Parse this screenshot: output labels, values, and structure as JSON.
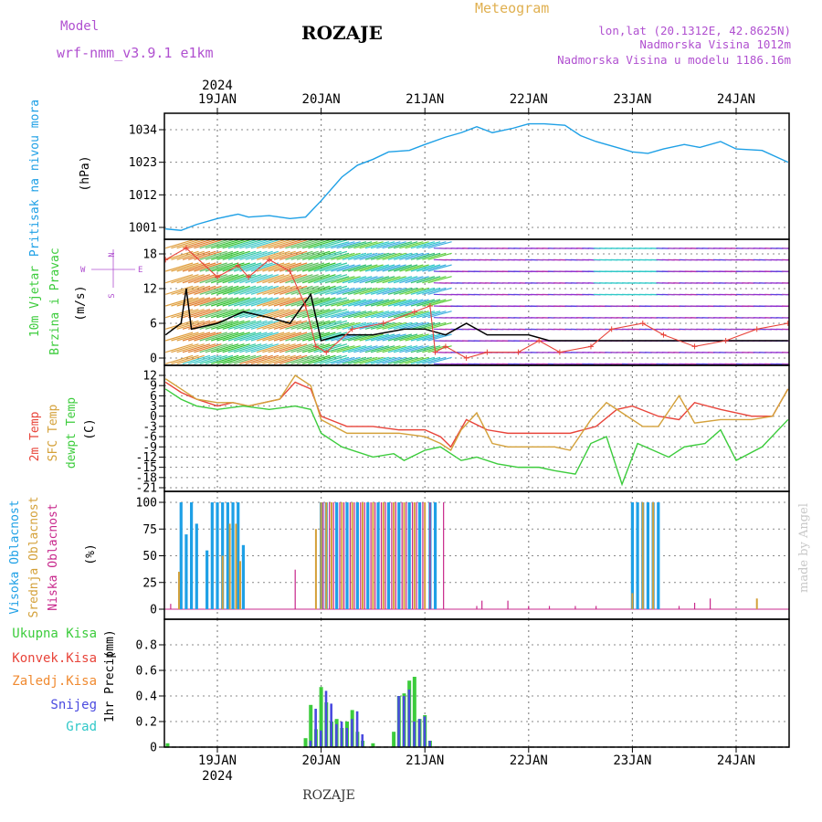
{
  "header": {
    "model_label": "Model",
    "model_name": "wrf-nmm_v3.9.1  e1km",
    "station": "ROZAJE",
    "product": "Meteogram",
    "lonlat": "lon,lat (20.1312E, 42.8625N)",
    "elevation": "Nadmorska Visina 1012m",
    "model_elevation": "Nadmorska Visina u modelu 1186.16m"
  },
  "colors": {
    "pressure": "#1ea0e6",
    "temp2m": "#e8443a",
    "sfc": "#d4a13a",
    "dewpt": "#3ccc3c",
    "high_cloud": "#1ea0e6",
    "mid_cloud": "#d4a13a",
    "low_cloud": "#c8288c",
    "total_precip": "#3ccc3c",
    "conv_precip": "#e8443a",
    "frozen_precip": "#f08a30",
    "snow": "#4a4ae0",
    "hail": "#30c8c8",
    "wind_speed": "#000000",
    "gust": "#e8443a",
    "wind_dir_label": "#b050d0"
  },
  "time_axis": {
    "year": "2024",
    "days": [
      "19JAN",
      "20JAN",
      "21JAN",
      "22JAN",
      "23JAN",
      "24JAN"
    ]
  },
  "footer": {
    "station": "ROZAJE",
    "credit": "made by Angel"
  },
  "chart_data": [
    {
      "type": "line",
      "title": "",
      "ylabel_lines": [
        "Pritisak na nivou mora",
        "(hPa)"
      ],
      "yticks": [
        1001,
        1012,
        1023,
        1034
      ],
      "ylim": [
        998,
        1038
      ],
      "x_unit": "days from 19JAN 00UTC",
      "series": [
        {
          "key": "pressure",
          "x": [
            -0.5,
            -0.35,
            -0.2,
            0,
            0.2,
            0.3,
            0.5,
            0.7,
            0.85,
            1.0,
            1.2,
            1.35,
            1.5,
            1.65,
            1.85,
            2.0,
            2.2,
            2.35,
            2.5,
            2.65,
            2.85,
            3.0,
            3.15,
            3.35,
            3.5,
            3.65,
            3.85,
            4.0,
            4.15,
            4.3,
            4.5,
            4.65,
            4.85,
            5.0,
            5.25,
            5.5
          ],
          "values": [
            1000.5,
            1000,
            1002,
            1004,
            1005.5,
            1004.5,
            1005,
            1004,
            1004.5,
            1010,
            1018,
            1022,
            1024,
            1026.5,
            1027,
            1029,
            1031.5,
            1033,
            1035,
            1033,
            1034.5,
            1036,
            1036,
            1035.5,
            1032,
            1030,
            1028,
            1026.5,
            1026,
            1027.5,
            1029,
            1028,
            1030,
            1027.5,
            1027,
            1023
          ]
        }
      ]
    },
    {
      "type": "line",
      "title": "",
      "ylabel_lines": [
        "10m Vjetar",
        "Brzina i Pravac",
        "(m/s)"
      ],
      "direction_key": [
        "N",
        "W",
        "E",
        "S"
      ],
      "yticks": [
        0,
        6,
        12,
        18
      ],
      "ylim": [
        -1,
        20
      ],
      "x_unit": "days from 19JAN 00UTC",
      "series": [
        {
          "key": "wind_speed",
          "x": [
            -0.5,
            -0.35,
            -0.3,
            -0.25,
            0,
            0.25,
            0.5,
            0.7,
            0.9,
            1.0,
            1.2,
            1.5,
            1.8,
            2.0,
            2.2,
            2.4,
            2.6,
            2.8,
            3.0,
            3.2,
            3.5,
            3.8,
            4.0,
            4.2,
            4.4,
            4.6,
            4.9,
            5.1,
            5.3,
            5.5
          ],
          "values": [
            4,
            6,
            12,
            5,
            6,
            8,
            7,
            6,
            11,
            3,
            4,
            4,
            5,
            5,
            4,
            6,
            4,
            4,
            4,
            3,
            3,
            3,
            3,
            3,
            3,
            3,
            3,
            3,
            3,
            3
          ]
        },
        {
          "key": "gust",
          "x": [
            -0.5,
            -0.3,
            0,
            0.2,
            0.3,
            0.5,
            0.7,
            0.85,
            0.95,
            1.05,
            1.3,
            1.6,
            1.9,
            2.05,
            2.1,
            2.2,
            2.4,
            2.6,
            2.9,
            3.1,
            3.3,
            3.6,
            3.8,
            4.1,
            4.3,
            4.6,
            4.9,
            5.2,
            5.5
          ],
          "values": [
            17,
            19,
            14,
            16,
            14,
            17,
            15,
            9,
            2,
            1,
            5,
            6,
            8,
            9,
            1,
            2,
            0,
            1,
            1,
            3,
            1,
            2,
            5,
            6,
            4,
            2,
            3,
            5,
            6
          ]
        }
      ]
    },
    {
      "type": "line",
      "title": "",
      "ylabel_lines": [
        "2m Temp",
        "SFC Temp",
        "dewpt Temp",
        "(C)"
      ],
      "yticks": [
        12,
        9,
        6,
        3,
        0,
        -3,
        -6,
        -9,
        -12,
        -15,
        -18,
        -21
      ],
      "ylim": [
        -22,
        13
      ],
      "x_unit": "days from 19JAN 00UTC",
      "series": [
        {
          "key": "temp2m",
          "x": [
            -0.5,
            -0.35,
            -0.2,
            0,
            0.15,
            0.3,
            0.45,
            0.6,
            0.75,
            0.9,
            1.0,
            1.25,
            1.5,
            1.75,
            2.0,
            2.15,
            2.25,
            2.4,
            2.6,
            2.8,
            3.0,
            3.25,
            3.4,
            3.65,
            3.85,
            4.0,
            4.25,
            4.45,
            4.6,
            4.85,
            5.15,
            5.35,
            5.5
          ],
          "values": [
            10,
            7,
            5,
            3,
            4,
            3,
            4,
            5,
            10,
            8,
            0,
            -3,
            -3,
            -4,
            -4,
            -6,
            -9,
            -1,
            -4,
            -5,
            -5,
            -5,
            -5,
            -3,
            2,
            3,
            0,
            -1,
            4,
            2,
            0,
            0,
            8
          ]
        },
        {
          "key": "sfc",
          "x": [
            -0.5,
            -0.35,
            -0.2,
            0,
            0.15,
            0.3,
            0.45,
            0.6,
            0.75,
            0.9,
            1.0,
            1.25,
            1.5,
            1.75,
            2.0,
            2.15,
            2.25,
            2.35,
            2.5,
            2.65,
            2.8,
            3.0,
            3.25,
            3.4,
            3.6,
            3.75,
            3.9,
            4.1,
            4.25,
            4.45,
            4.6,
            4.85,
            5.15,
            5.35,
            5.5
          ],
          "values": [
            11,
            8,
            5,
            4,
            4,
            3,
            4,
            5,
            12,
            9,
            -1,
            -5,
            -5,
            -5,
            -6,
            -8,
            -10,
            -4,
            1,
            -8,
            -9,
            -9,
            -9,
            -10,
            -1,
            4,
            1,
            -3,
            -3,
            6,
            -2,
            -1,
            -1,
            0,
            8
          ]
        },
        {
          "key": "dewpt",
          "x": [
            -0.5,
            -0.35,
            -0.2,
            0,
            0.25,
            0.5,
            0.75,
            0.9,
            1.0,
            1.2,
            1.5,
            1.7,
            1.8,
            2.0,
            2.15,
            2.35,
            2.5,
            2.7,
            2.9,
            3.1,
            3.25,
            3.45,
            3.6,
            3.75,
            3.9,
            4.05,
            4.2,
            4.35,
            4.5,
            4.7,
            4.85,
            5.0,
            5.25,
            5.5
          ],
          "values": [
            8,
            5,
            3,
            2,
            3,
            2,
            3,
            2,
            -5,
            -9,
            -12,
            -11,
            -13,
            -10,
            -9,
            -13,
            -12,
            -14,
            -15,
            -15,
            -16,
            -17,
            -8,
            -6,
            -20,
            -8,
            -10,
            -12,
            -9,
            -8,
            -4,
            -13,
            -9,
            -1
          ]
        }
      ]
    },
    {
      "type": "bar",
      "title": "",
      "ylabel_lines": [
        "Visoka Oblacnost",
        "Srednja Oblacnost",
        "Niska Oblacnost",
        "(%)"
      ],
      "yticks": [
        0,
        25,
        50,
        75,
        100
      ],
      "ylim": [
        0,
        100
      ],
      "x_unit": "days from 19JAN 00UTC",
      "series": [
        {
          "key": "high_cloud",
          "x": [
            -0.35,
            -0.3,
            -0.25,
            -0.2,
            -0.1,
            -0.05,
            0,
            0.05,
            0.1,
            0.15,
            0.2,
            0.25,
            1.0,
            1.05,
            1.15,
            1.25,
            1.35,
            1.45,
            1.55,
            1.65,
            1.75,
            1.85,
            1.95,
            2.05,
            2.1,
            4.0,
            4.05,
            4.1,
            4.15,
            4.2,
            4.25
          ],
          "values": [
            100,
            70,
            100,
            80,
            55,
            100,
            100,
            100,
            100,
            100,
            100,
            60,
            100,
            100,
            100,
            100,
            100,
            100,
            100,
            100,
            100,
            100,
            100,
            100,
            100,
            100,
            100,
            100,
            100,
            100,
            100
          ]
        },
        {
          "key": "mid_cloud",
          "x": [
            -0.37,
            0.05,
            0.12,
            0.18,
            0.22,
            0.95,
            1.0,
            1.05,
            1.1,
            1.2,
            1.3,
            1.4,
            1.5,
            1.6,
            1.7,
            1.8,
            1.9,
            2.0,
            4.0,
            4.1,
            4.2,
            5.2
          ],
          "values": [
            35,
            50,
            80,
            80,
            45,
            75,
            100,
            100,
            100,
            100,
            100,
            100,
            100,
            100,
            100,
            100,
            100,
            100,
            15,
            100,
            100,
            10
          ]
        },
        {
          "key": "low_cloud",
          "x": [
            -0.45,
            0.75,
            1.02,
            1.08,
            1.12,
            1.18,
            1.22,
            1.28,
            1.32,
            1.38,
            1.42,
            1.48,
            1.52,
            1.58,
            1.62,
            1.68,
            1.72,
            1.78,
            1.82,
            1.88,
            1.92,
            1.98,
            2.05,
            2.18,
            2.5,
            2.55,
            2.8,
            3.0,
            3.2,
            3.45,
            3.65,
            4.45,
            4.6,
            4.75
          ],
          "values": [
            5,
            37,
            100,
            100,
            100,
            100,
            100,
            100,
            100,
            100,
            100,
            100,
            100,
            100,
            100,
            100,
            100,
            100,
            100,
            100,
            100,
            100,
            100,
            100,
            3,
            8,
            8,
            3,
            3,
            3,
            3,
            3,
            6,
            10
          ]
        }
      ]
    },
    {
      "type": "bar",
      "title": "",
      "ylabel_lines": [
        "1hr Precip",
        "(mm)"
      ],
      "legend": [
        "Ukupna Kisa",
        "Konvek.Kisa",
        "Zaledj.Kisa",
        "Snijeg",
        "Grad"
      ],
      "yticks": [
        0,
        0.2,
        0.4,
        0.6,
        0.8
      ],
      "ylim": [
        0,
        1.0
      ],
      "x_unit": "days from 19JAN 00UTC",
      "series": [
        {
          "key": "total_precip",
          "x": [
            -0.48,
            0.85,
            0.9,
            0.95,
            1.0,
            1.05,
            1.1,
            1.15,
            1.2,
            1.25,
            1.3,
            1.35,
            1.4,
            1.5,
            1.7,
            1.75,
            1.8,
            1.85,
            1.9,
            1.95,
            2.0,
            2.05
          ],
          "values": [
            0.03,
            0.07,
            0.33,
            0.14,
            0.47,
            0.35,
            0.2,
            0.22,
            0.15,
            0.2,
            0.29,
            0.12,
            0.05,
            0.03,
            0.12,
            0.4,
            0.42,
            0.52,
            0.55,
            0.22,
            0.25,
            0.05
          ]
        },
        {
          "key": "snow",
          "x": [
            0.88,
            0.93,
            0.98,
            1.03,
            1.08,
            1.13,
            1.18,
            1.23,
            1.28,
            1.33,
            1.38,
            1.73,
            1.78,
            1.83,
            1.88,
            1.93,
            1.98,
            2.03
          ],
          "values": [
            0.05,
            0.3,
            0.13,
            0.44,
            0.34,
            0.18,
            0.2,
            0.15,
            0.22,
            0.28,
            0.1,
            0.4,
            0.4,
            0.45,
            0.2,
            0.22,
            0.24,
            0.05
          ]
        }
      ]
    }
  ]
}
